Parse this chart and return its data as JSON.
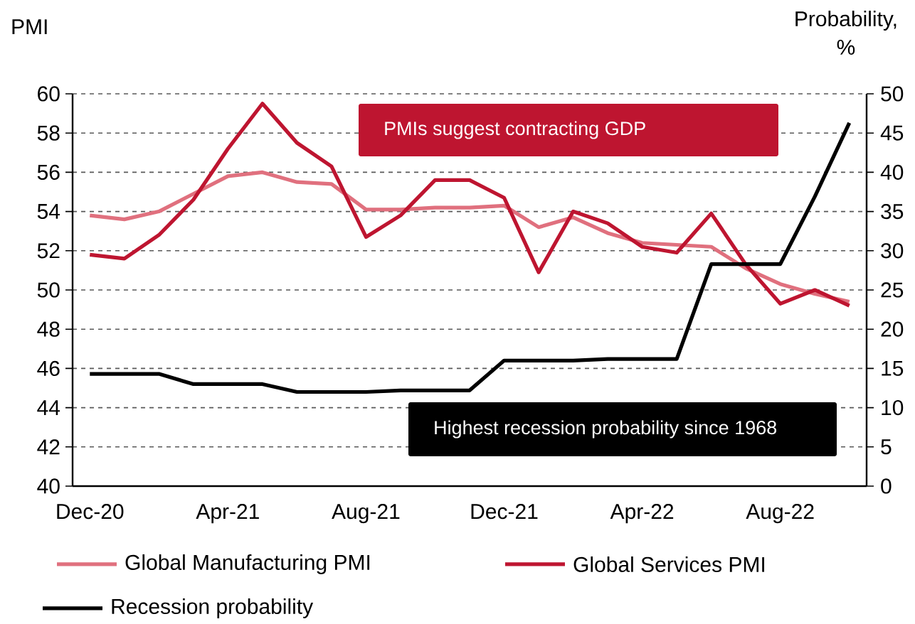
{
  "chart_data": {
    "type": "line",
    "categories": [
      "Dec-20",
      null,
      null,
      null,
      "Apr-21",
      null,
      null,
      null,
      "Aug-21",
      null,
      null,
      null,
      "Dec-21",
      null,
      null,
      null,
      "Apr-22",
      null,
      null,
      null,
      "Aug-22",
      null,
      null
    ],
    "ylabel": "PMI",
    "y2label": "Probability, %",
    "ylim": [
      40,
      60
    ],
    "yticks": [
      40,
      42,
      44,
      46,
      48,
      50,
      52,
      54,
      56,
      58,
      60
    ],
    "y2lim": [
      0,
      50
    ],
    "y2ticks": [
      0,
      5,
      10,
      15,
      20,
      25,
      30,
      35,
      40,
      45,
      50
    ],
    "grid": "y",
    "legend": "bottom",
    "series": [
      {
        "name": "Global Manufacturing PMI",
        "color": "#e0707e",
        "values": [
          53.8,
          53.6,
          54.0,
          54.9,
          55.8,
          56.0,
          55.5,
          55.4,
          54.1,
          54.1,
          54.2,
          54.2,
          54.3,
          53.2,
          53.7,
          52.9,
          52.4,
          52.3,
          52.2,
          51.1,
          50.3,
          49.8,
          49.4
        ]
      },
      {
        "name": "Global Services PMI",
        "color": "#be1530",
        "values": [
          51.8,
          51.6,
          52.8,
          54.6,
          57.2,
          59.5,
          57.5,
          56.3,
          52.7,
          53.8,
          55.6,
          55.6,
          54.7,
          50.9,
          54.0,
          53.4,
          52.2,
          51.9,
          53.9,
          51.3,
          49.3,
          50.0,
          49.2
        ]
      },
      {
        "name": "Recession probability",
        "color": "#000000",
        "axis": "y2",
        "values": [
          14.3,
          14.3,
          14.3,
          13,
          13,
          13,
          12,
          12,
          12,
          12.2,
          12.2,
          12.2,
          16,
          16,
          16,
          16.2,
          16.2,
          16.2,
          28.3,
          28.3,
          28.3,
          36.9,
          46.3
        ]
      }
    ],
    "annotations": [
      "PMIs suggest contracting GDP",
      "Highest recession probability since 1968"
    ]
  }
}
